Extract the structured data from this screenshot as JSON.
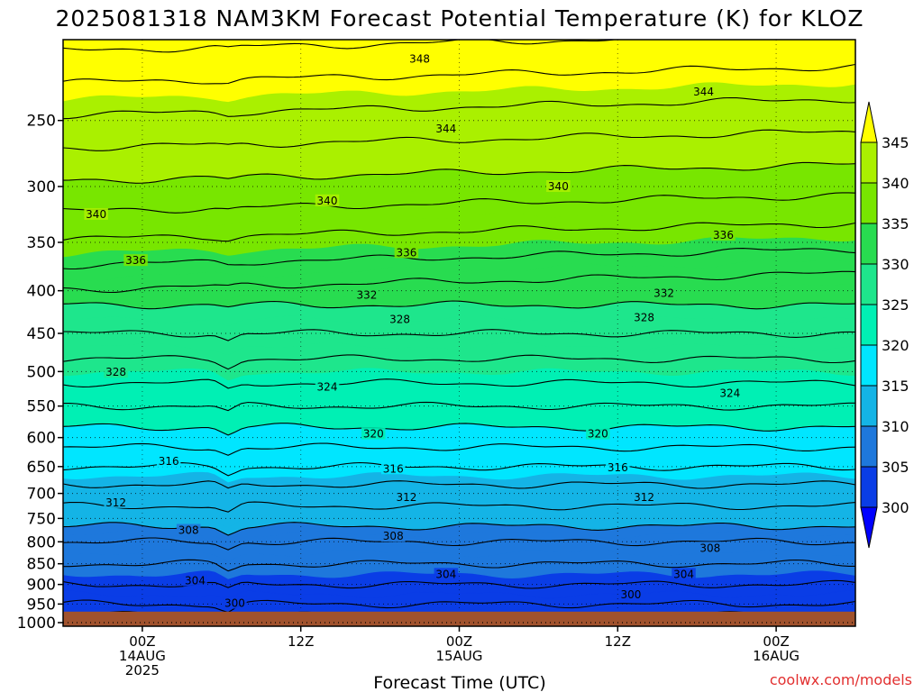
{
  "chart_data": {
    "type": "heatmap",
    "title": "2025081318 NAM3KM Forecast Potential Temperature (K) for KLOZ",
    "xlabel": "Forecast Time (UTC)",
    "ylabel": "",
    "credit": "coolwx.com/models",
    "x_range_hours_from_init": [
      0,
      60
    ],
    "x_ticks": [
      {
        "hour": 6,
        "label": [
          "00Z",
          "14AUG",
          "2025"
        ]
      },
      {
        "hour": 18,
        "label": [
          "12Z"
        ]
      },
      {
        "hour": 30,
        "label": [
          "00Z",
          "15AUG"
        ]
      },
      {
        "hour": 42,
        "label": [
          "12Z"
        ]
      },
      {
        "hour": 54,
        "label": [
          "00Z",
          "16AUG"
        ]
      }
    ],
    "y_axis": {
      "scale": "log-pressure",
      "range_hpa": [
        1010,
        200
      ],
      "inverted": true
    },
    "y_ticks": [
      250,
      300,
      350,
      400,
      450,
      500,
      550,
      600,
      650,
      700,
      750,
      800,
      850,
      900,
      950,
      1000
    ],
    "surface_pressure_hpa": 970,
    "colorbar": {
      "levels": [
        300,
        305,
        310,
        315,
        320,
        325,
        330,
        335,
        340,
        345
      ],
      "labels": [
        "300",
        "305",
        "310",
        "315",
        "320",
        "325",
        "330",
        "335",
        "340",
        "345"
      ],
      "colors": [
        "#0000ff",
        "#0a3de6",
        "#1e78dc",
        "#14b4e6",
        "#00e6ff",
        "#00f0b4",
        "#1ee68c",
        "#28dc50",
        "#78e600",
        "#aaf000",
        "#ffff00"
      ]
    },
    "contour_interval_K": 2,
    "profile_theta_K_by_pressure_hpa": [
      {
        "p": 970,
        "theta": 301
      },
      {
        "p": 950,
        "theta": 302
      },
      {
        "p": 900,
        "theta": 304
      },
      {
        "p": 850,
        "theta": 306
      },
      {
        "p": 800,
        "theta": 308
      },
      {
        "p": 750,
        "theta": 311
      },
      {
        "p": 700,
        "theta": 313
      },
      {
        "p": 650,
        "theta": 316
      },
      {
        "p": 600,
        "theta": 319
      },
      {
        "p": 550,
        "theta": 322
      },
      {
        "p": 500,
        "theta": 325
      },
      {
        "p": 450,
        "theta": 328
      },
      {
        "p": 400,
        "theta": 331
      },
      {
        "p": 350,
        "theta": 335
      },
      {
        "p": 300,
        "theta": 339
      },
      {
        "p": 250,
        "theta": 343
      },
      {
        "p": 200,
        "theta": 348
      }
    ],
    "contour_labels": [
      {
        "value": "348",
        "hour": 27,
        "p": 211
      },
      {
        "value": "344",
        "hour": 48.5,
        "p": 231
      },
      {
        "value": "344",
        "hour": 29,
        "p": 256
      },
      {
        "value": "340",
        "hour": 2.5,
        "p": 324
      },
      {
        "value": "340",
        "hour": 20,
        "p": 312
      },
      {
        "value": "340",
        "hour": 37.5,
        "p": 300
      },
      {
        "value": "336",
        "hour": 50,
        "p": 343
      },
      {
        "value": "336",
        "hour": 5.5,
        "p": 368
      },
      {
        "value": "336",
        "hour": 26,
        "p": 360
      },
      {
        "value": "332",
        "hour": 23,
        "p": 405
      },
      {
        "value": "332",
        "hour": 45.5,
        "p": 403
      },
      {
        "value": "328",
        "hour": 25.5,
        "p": 433
      },
      {
        "value": "328",
        "hour": 44,
        "p": 431
      },
      {
        "value": "328",
        "hour": 4,
        "p": 501
      },
      {
        "value": "324",
        "hour": 20,
        "p": 522
      },
      {
        "value": "324",
        "hour": 50.5,
        "p": 531
      },
      {
        "value": "320",
        "hour": 23.5,
        "p": 594
      },
      {
        "value": "320",
        "hour": 40.5,
        "p": 594
      },
      {
        "value": "316",
        "hour": 8,
        "p": 641
      },
      {
        "value": "316",
        "hour": 25,
        "p": 654
      },
      {
        "value": "316",
        "hour": 42,
        "p": 652
      },
      {
        "value": "312",
        "hour": 4,
        "p": 718
      },
      {
        "value": "312",
        "hour": 26,
        "p": 708
      },
      {
        "value": "312",
        "hour": 44,
        "p": 708
      },
      {
        "value": "308",
        "hour": 9.5,
        "p": 775
      },
      {
        "value": "308",
        "hour": 25,
        "p": 788
      },
      {
        "value": "308",
        "hour": 49,
        "p": 814
      },
      {
        "value": "304",
        "hour": 10,
        "p": 891
      },
      {
        "value": "304",
        "hour": 29,
        "p": 875
      },
      {
        "value": "304",
        "hour": 47,
        "p": 875
      },
      {
        "value": "300",
        "hour": 13,
        "p": 948
      },
      {
        "value": "300",
        "hour": 43,
        "p": 926
      }
    ]
  }
}
